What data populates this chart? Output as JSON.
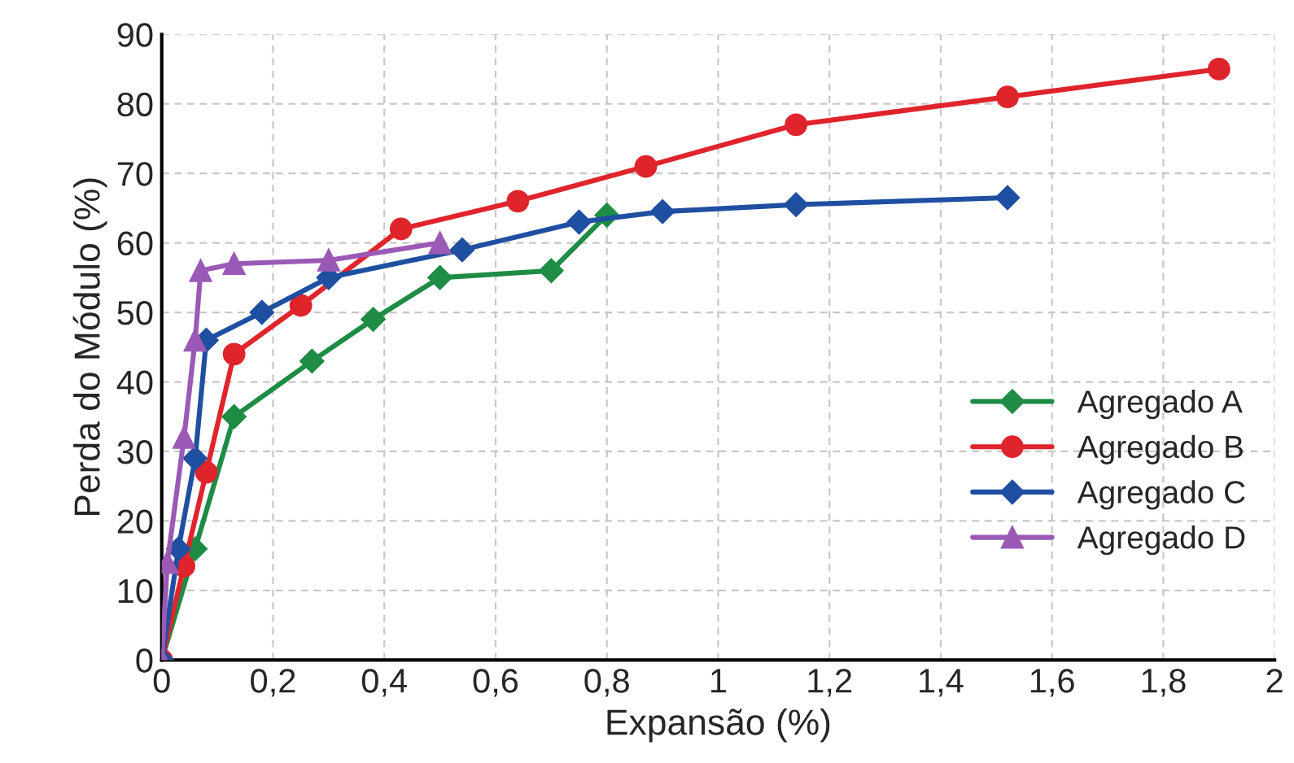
{
  "chart_data": {
    "type": "line",
    "xlabel": "Expansão (%)",
    "ylabel": "Perda do Módulo (%)",
    "xlim": [
      0,
      2
    ],
    "xticks": [
      {
        "value": 0,
        "label": "0"
      },
      {
        "value": 0.2,
        "label": "0,2"
      },
      {
        "value": 0.4,
        "label": "0,4"
      },
      {
        "value": 0.6,
        "label": "0,6"
      },
      {
        "value": 0.8,
        "label": "0,8"
      },
      {
        "value": 1,
        "label": "1"
      },
      {
        "value": 1.2,
        "label": "1,2"
      },
      {
        "value": 1.4,
        "label": "1,4"
      },
      {
        "value": 1.6,
        "label": "1,6"
      },
      {
        "value": 1.8,
        "label": "1,8"
      },
      {
        "value": 2,
        "label": "2"
      }
    ],
    "ylim": [
      0,
      90
    ],
    "yticks": [
      0,
      10,
      20,
      30,
      40,
      50,
      60,
      70,
      80,
      90
    ],
    "grid": true,
    "legend": "right",
    "series": [
      {
        "name": "Agregado A",
        "color": "#1e8c45",
        "marker": "diamond",
        "x": [
          0,
          0.06,
          0.13,
          0.27,
          0.38,
          0.5,
          0.7,
          0.8
        ],
        "values": [
          0,
          16,
          35,
          43,
          49,
          55,
          56,
          64
        ]
      },
      {
        "name": "Agregado B",
        "color": "#e0242c",
        "marker": "circle",
        "x": [
          0,
          0.04,
          0.08,
          0.13,
          0.25,
          0.43,
          0.64,
          0.87,
          1.14,
          1.52,
          1.9
        ],
        "values": [
          0,
          13.5,
          27,
          44,
          51,
          62,
          66,
          71,
          77,
          81,
          85
        ]
      },
      {
        "name": "Agregado C",
        "color": "#1f4fa0",
        "marker": "diamond",
        "x": [
          0,
          0.03,
          0.06,
          0.08,
          0.18,
          0.3,
          0.54,
          0.75,
          0.9,
          1.14,
          1.52
        ],
        "values": [
          0,
          16,
          29,
          46,
          50,
          55,
          59,
          63,
          64.5,
          65.5,
          66.5
        ]
      },
      {
        "name": "Agregado D",
        "color": "#9b59b6",
        "marker": "triangle",
        "x": [
          0,
          0.01,
          0.04,
          0.06,
          0.07,
          0.13,
          0.3,
          0.5
        ],
        "values": [
          0,
          14,
          32,
          46,
          56,
          57,
          57.5,
          60
        ]
      }
    ]
  }
}
